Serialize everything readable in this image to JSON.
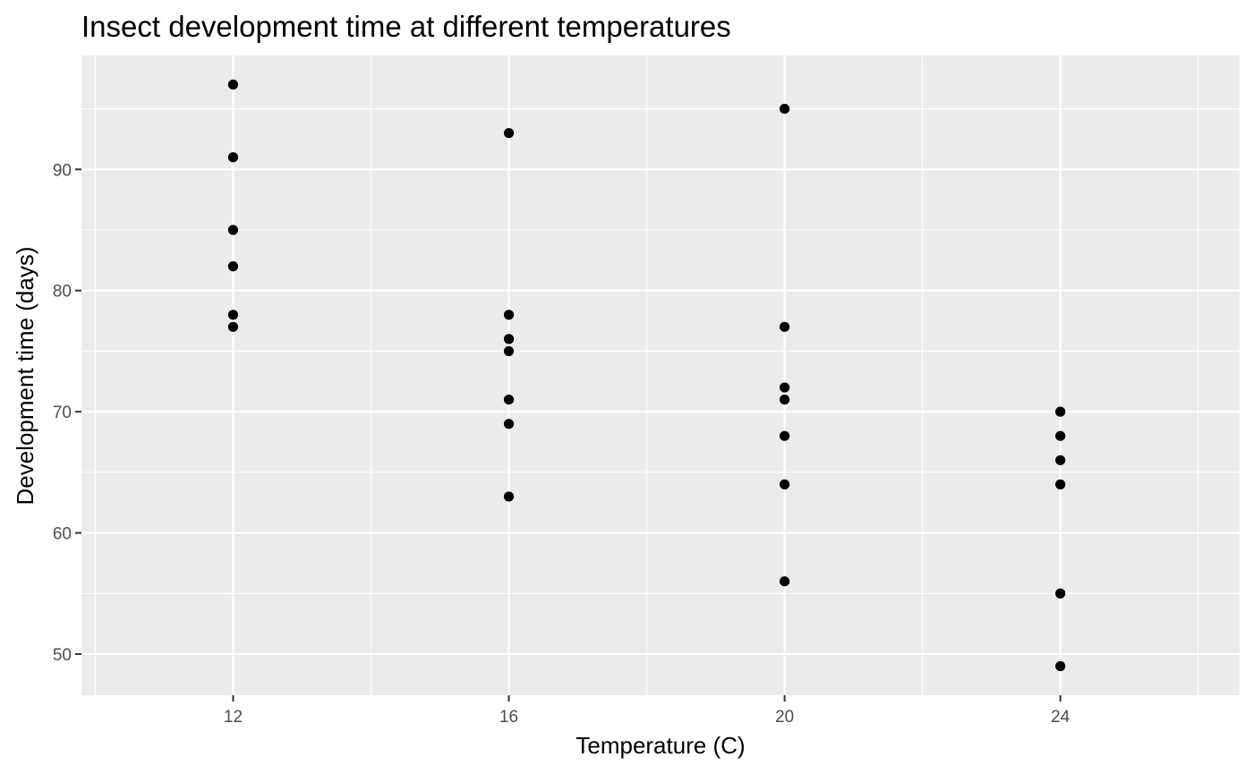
{
  "chart_data": {
    "type": "scatter",
    "title": "Insect development time at different temperatures",
    "xlabel": "Temperature (C)",
    "ylabel": "Development time (days)",
    "xlim": [
      9.8,
      26.6
    ],
    "ylim": [
      46.6,
      99.4
    ],
    "x_ticks": [
      12,
      16,
      20,
      24
    ],
    "y_ticks": [
      50,
      60,
      70,
      80,
      90
    ],
    "x_minor": [
      10,
      14,
      18,
      22,
      26
    ],
    "y_minor": [
      55,
      65,
      75,
      85,
      95
    ],
    "grid": true,
    "legend": "none",
    "colors": {
      "panel": "#ebebeb",
      "grid": "#ffffff",
      "point": "#000000",
      "tick": "#333333"
    },
    "series": [
      {
        "points": [
          {
            "x": 12,
            "y": 97
          },
          {
            "x": 12,
            "y": 91
          },
          {
            "x": 12,
            "y": 85
          },
          {
            "x": 12,
            "y": 82
          },
          {
            "x": 12,
            "y": 78
          },
          {
            "x": 12,
            "y": 77
          },
          {
            "x": 16,
            "y": 93
          },
          {
            "x": 16,
            "y": 78
          },
          {
            "x": 16,
            "y": 76
          },
          {
            "x": 16,
            "y": 75
          },
          {
            "x": 16,
            "y": 71
          },
          {
            "x": 16,
            "y": 69
          },
          {
            "x": 16,
            "y": 63
          },
          {
            "x": 20,
            "y": 95
          },
          {
            "x": 20,
            "y": 77
          },
          {
            "x": 20,
            "y": 72
          },
          {
            "x": 20,
            "y": 71
          },
          {
            "x": 20,
            "y": 68
          },
          {
            "x": 20,
            "y": 64
          },
          {
            "x": 20,
            "y": 56
          },
          {
            "x": 24,
            "y": 70
          },
          {
            "x": 24,
            "y": 68
          },
          {
            "x": 24,
            "y": 66
          },
          {
            "x": 24,
            "y": 64
          },
          {
            "x": 24,
            "y": 55
          },
          {
            "x": 24,
            "y": 49
          }
        ]
      }
    ]
  }
}
